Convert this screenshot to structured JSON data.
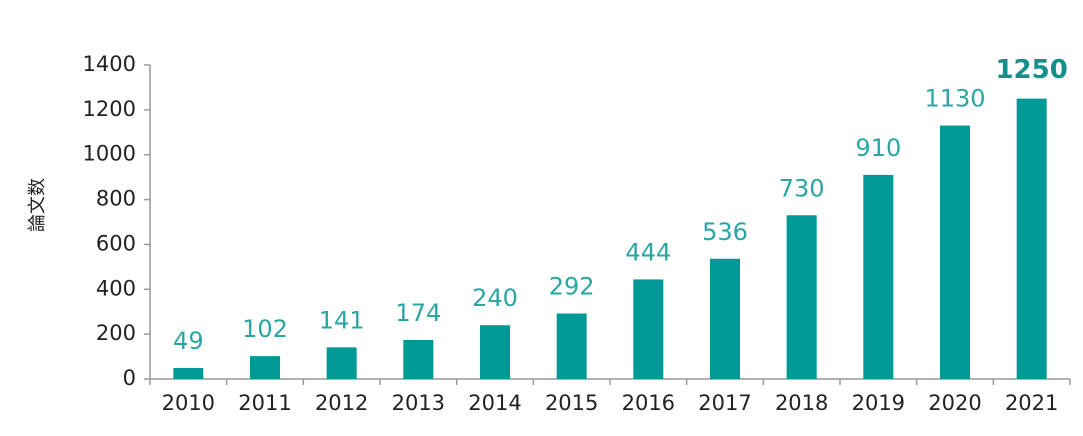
{
  "chart_data": {
    "type": "bar",
    "y_label": "論文数",
    "categories": [
      "2010",
      "2011",
      "2012",
      "2013",
      "2014",
      "2015",
      "2016",
      "2017",
      "2018",
      "2019",
      "2020",
      "2021"
    ],
    "values": [
      49,
      102,
      141,
      174,
      240,
      292,
      444,
      536,
      730,
      910,
      1130,
      1250
    ],
    "color": "#009a96",
    "ylim": [
      0,
      1400
    ],
    "yticks": [
      0,
      200,
      400,
      600,
      800,
      1000,
      1200,
      1400
    ],
    "grid": false
  }
}
